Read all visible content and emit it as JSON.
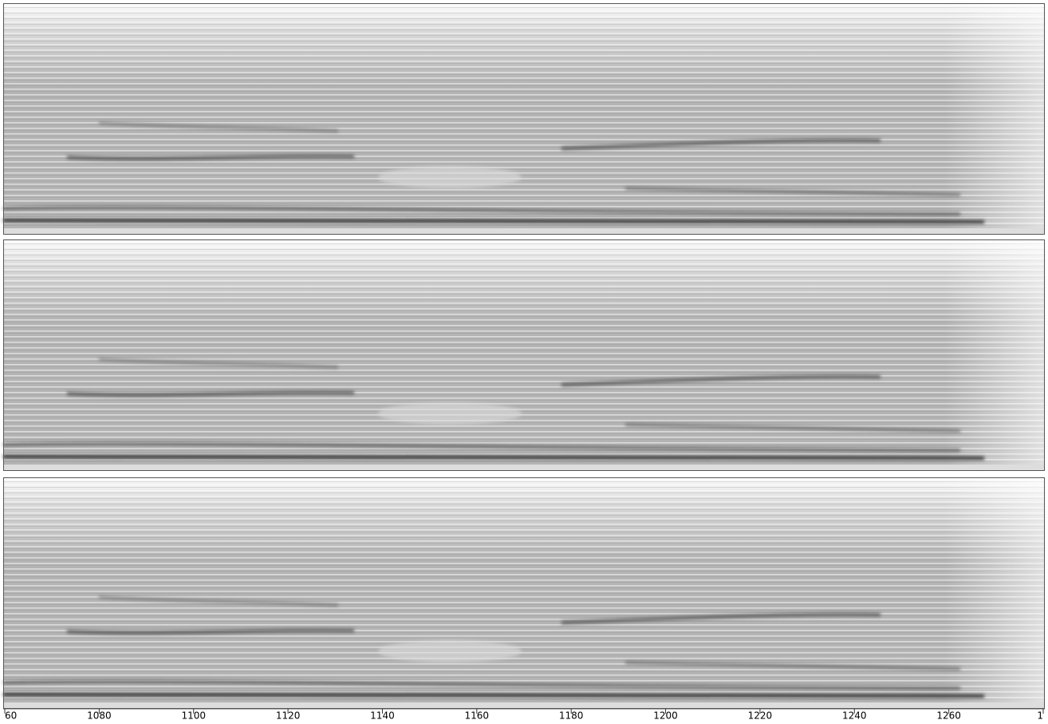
{
  "chart_data": {
    "type": "spectrogram",
    "xlim": [
      1060,
      1280
    ],
    "xticks": [
      {
        "value": 1060,
        "label": "60"
      },
      1080,
      1100,
      1120,
      1140,
      1160,
      1180,
      1200,
      1220,
      1240,
      1260,
      {
        "value": 1280,
        "label": "1"
      }
    ]
  }
}
